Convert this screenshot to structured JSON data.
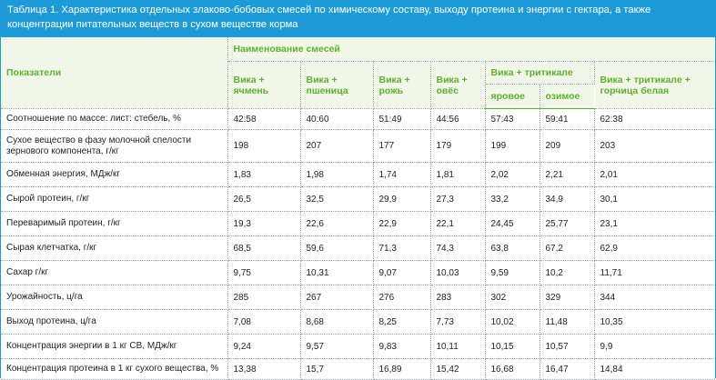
{
  "title": "Таблица 1. Характеристика отдельных злаково-бобовых смесей по химическому составу, выходу протеина и энергии с гектара, а также концентрации питательных веществ в сухом веществе корма",
  "header": {
    "indicators": "Показатели",
    "mixes_group": "Наименование смесей",
    "columns": [
      "Вика + ячмень",
      "Вика + пшеница",
      "Вика + рожь",
      "Вика + овёс"
    ],
    "triticale_group": "Вика + тритикале",
    "triticale_sub": [
      "яровое",
      "озимое"
    ],
    "last_column": "Вика + тритикале + горчица белая"
  },
  "rows": [
    {
      "label": "Соотношение по массе: лист: стебель, %",
      "values": [
        "42:58",
        "40:60",
        "51:49",
        "44:56",
        "57:43",
        "59:41",
        "62:38"
      ]
    },
    {
      "label": "Сухое вещество в фазу молочной спелости зернового компонента, г/кг",
      "values": [
        "198",
        "207",
        "177",
        "179",
        "199",
        "209",
        "203"
      ]
    },
    {
      "label": "Обменная энергия, МДж/кг",
      "values": [
        "1,83",
        "1,98",
        "1,74",
        "1,81",
        "2,02",
        "2,21",
        "2,01"
      ]
    },
    {
      "label": "Сырой протеин, г/кг",
      "values": [
        "26,5",
        "32,5",
        "29,9",
        "27,3",
        "33,2",
        "34,9",
        "30,1"
      ]
    },
    {
      "label": "Переваримый протеин, г/кг",
      "values": [
        "19,3",
        "22,6",
        "22,9",
        "22,1",
        "24,45",
        "25,77",
        "23,1"
      ]
    },
    {
      "label": "Сырая клетчатка, г/кг",
      "values": [
        "68,5",
        "59,6",
        "71,3",
        "74,3",
        "63,8",
        "67,2",
        "62,9"
      ]
    },
    {
      "label": "Сахар г/кг",
      "values": [
        "9,75",
        "10,31",
        "9,07",
        "10,03",
        "9,59",
        "10,2",
        "11,71"
      ]
    },
    {
      "label": "Урожайность, ц/га",
      "values": [
        "285",
        "267",
        "276",
        "283",
        "302",
        "329",
        "344"
      ]
    },
    {
      "label": "Выход протеина, ц/га",
      "values": [
        "7,08",
        "8,68",
        "8,25",
        "7,73",
        "10,02",
        "11,48",
        "10,35"
      ]
    },
    {
      "label": "Концентрация энергии в 1 кг СВ, МДж/кг",
      "values": [
        "9,24",
        "9,57",
        "9,83",
        "10,11",
        "10,15",
        "10,57",
        "9,9"
      ]
    },
    {
      "label": "Концентрация протеина в 1 кг сухого вещества, %",
      "values": [
        "13,38",
        "15,7",
        "16,89",
        "15,42",
        "16,68",
        "16,47",
        "14,84"
      ]
    }
  ],
  "colors": {
    "title_bg": "#1e9bd7",
    "header_text": "#5eb130",
    "header_bg": "#f2f6e8"
  }
}
